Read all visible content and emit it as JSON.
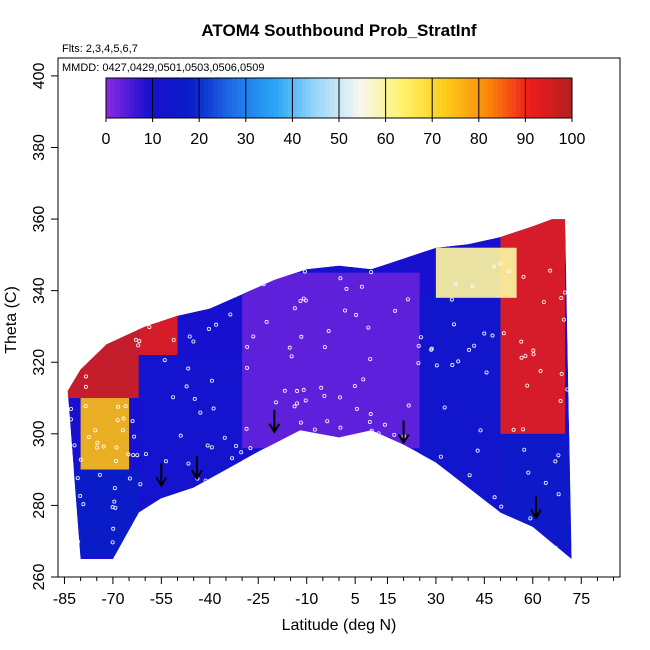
{
  "chart_data": {
    "type": "heatmap",
    "title": "ATOM4 Southbound Prob_StratInf",
    "subtitle_flights": "Flts: 2,3,4,5,6,7",
    "subtitle_dates": "MMDD: 0427,0429,0501,0503,0506,0509",
    "xlabel": "Latitude (deg N)",
    "ylabel": "Theta (C)",
    "xlim": [
      -87,
      87
    ],
    "ylim": [
      260,
      405
    ],
    "x_ticks": [
      -85,
      -70,
      -55,
      -40,
      -25,
      -10,
      5,
      15,
      30,
      45,
      60,
      75
    ],
    "x_tick_labels": [
      "-85",
      "-70",
      "-55",
      "-40",
      "-25",
      "-10",
      "5",
      "15",
      "30",
      "45",
      "60",
      "75"
    ],
    "y_ticks": [
      260,
      280,
      300,
      320,
      340,
      360,
      380,
      400
    ],
    "y_tick_labels": [
      "260",
      "280",
      "300",
      "320",
      "340",
      "360",
      "380",
      "400"
    ],
    "colorbar": {
      "min": 0,
      "max": 100,
      "ticks": [
        0,
        10,
        20,
        30,
        40,
        50,
        60,
        70,
        80,
        90,
        100
      ],
      "tick_labels": [
        "0",
        "10",
        "20",
        "30",
        "40",
        "50",
        "60",
        "70",
        "80",
        "90",
        "100"
      ],
      "colors": [
        "#8a2be2",
        "#1a0fd0",
        "#0a1dc8",
        "#1f6fe8",
        "#2aa6f5",
        "#9fd8fa",
        "#f7f7f0",
        "#fff26a",
        "#fccc1a",
        "#fb8a0a",
        "#ee1c1c",
        "#b42020"
      ]
    },
    "tropopause_arrows": [
      {
        "lat": -55,
        "theta": 285
      },
      {
        "lat": -44,
        "theta": 287
      },
      {
        "lat": -20,
        "theta": 300
      },
      {
        "lat": 20,
        "theta": 297
      },
      {
        "lat": 61,
        "theta": 276
      }
    ],
    "lower_boundary": [
      [
        -80,
        265
      ],
      [
        -70,
        265
      ],
      [
        -62,
        278
      ],
      [
        -55,
        282
      ],
      [
        -45,
        285
      ],
      [
        -35,
        290
      ],
      [
        -25,
        295
      ],
      [
        -12,
        301
      ],
      [
        0,
        299
      ],
      [
        10,
        301
      ],
      [
        20,
        297
      ],
      [
        30,
        292
      ],
      [
        40,
        285
      ],
      [
        50,
        278
      ],
      [
        60,
        274
      ],
      [
        68,
        268
      ],
      [
        72,
        265
      ]
    ],
    "upper_boundary": [
      [
        -84,
        312
      ],
      [
        -80,
        318
      ],
      [
        -72,
        325
      ],
      [
        -60,
        330
      ],
      [
        -50,
        333
      ],
      [
        -40,
        335
      ],
      [
        -30,
        339
      ],
      [
        -20,
        343
      ],
      [
        -10,
        346
      ],
      [
        0,
        347
      ],
      [
        10,
        346
      ],
      [
        20,
        349
      ],
      [
        30,
        352
      ],
      [
        40,
        353
      ],
      [
        50,
        355
      ],
      [
        60,
        358
      ],
      [
        66,
        360
      ],
      [
        70,
        360
      ]
    ],
    "probability_field": [
      {
        "lat_range": [
          -84,
          -62
        ],
        "theta_range": [
          310,
          332
        ],
        "value": 95
      },
      {
        "lat_range": [
          -62,
          -50
        ],
        "theta_range": [
          322,
          334
        ],
        "value": 92
      },
      {
        "lat_range": [
          -80,
          -65
        ],
        "theta_range": [
          290,
          310
        ],
        "value": 75
      },
      {
        "lat_range": [
          -84,
          -62
        ],
        "theta_range": [
          266,
          290
        ],
        "value": 18
      },
      {
        "lat_range": [
          -62,
          -30
        ],
        "theta_range": [
          282,
          322
        ],
        "value": 12
      },
      {
        "lat_range": [
          -30,
          25
        ],
        "theta_range": [
          296,
          345
        ],
        "value": 3
      },
      {
        "lat_range": [
          25,
          50
        ],
        "theta_range": [
          280,
          340
        ],
        "value": 14
      },
      {
        "lat_range": [
          50,
          72
        ],
        "theta_range": [
          268,
          300
        ],
        "value": 16
      },
      {
        "lat_range": [
          50,
          70
        ],
        "theta_range": [
          300,
          360
        ],
        "value": 92
      },
      {
        "lat_range": [
          30,
          55
        ],
        "theta_range": [
          338,
          352
        ],
        "value": 60
      }
    ]
  }
}
